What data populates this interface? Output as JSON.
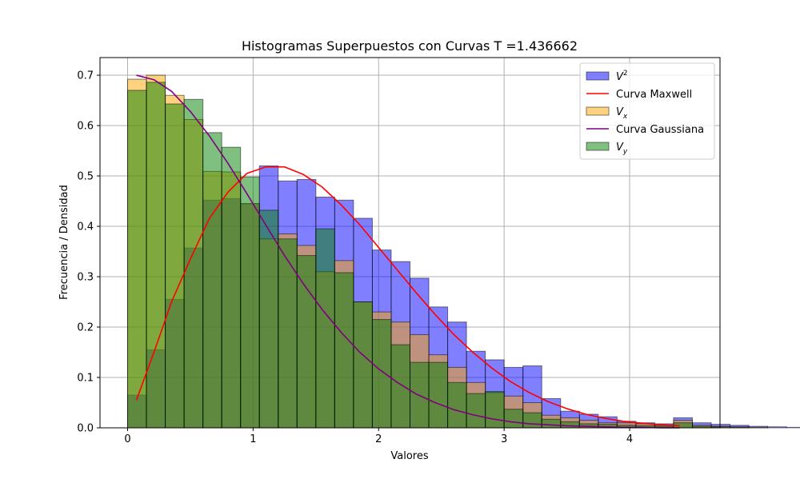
{
  "chart_data": {
    "type": "bar",
    "title": "Histogramas Superpuestos con Curvas T =1.436662",
    "xlabel": "Valores",
    "ylabel": "Frecuencia / Densidad",
    "xlim": [
      -0.22,
      4.72
    ],
    "ylim": [
      0,
      0.735
    ],
    "xticks": [
      0,
      1,
      2,
      3,
      4
    ],
    "yticks": [
      0.0,
      0.1,
      0.2,
      0.3,
      0.4,
      0.5,
      0.6,
      0.7
    ],
    "grid": true,
    "legend_position": "upper right",
    "bin_width": 0.15,
    "series": [
      {
        "name": "V^2",
        "kind": "histogram",
        "color": "#0000ff",
        "alpha": 0.5,
        "start": 0,
        "values": [
          0.065,
          0.155,
          0.255,
          0.357,
          0.452,
          0.455,
          0.445,
          0.52,
          0.49,
          0.493,
          0.458,
          0.452,
          0.416,
          0.353,
          0.33,
          0.297,
          0.24,
          0.21,
          0.152,
          0.135,
          0.12,
          0.123,
          0.058,
          0.033,
          0.027,
          0.022,
          0.013,
          0.01,
          0.008,
          0.02,
          0.01,
          0.007,
          0.005,
          0.003,
          0.002,
          0.001,
          0.0,
          0.0,
          0.0,
          0.0,
          0.0,
          0.0,
          0.0,
          0.0,
          0.0,
          0.002,
          0.0
        ]
      },
      {
        "name": "V_x",
        "kind": "histogram",
        "color": "#ffa500",
        "alpha": 0.5,
        "start": 0,
        "values": [
          0.692,
          0.7,
          0.66,
          0.612,
          0.509,
          0.508,
          0.445,
          0.375,
          0.385,
          0.362,
          0.31,
          0.332,
          0.25,
          0.23,
          0.21,
          0.185,
          0.145,
          0.12,
          0.09,
          0.07,
          0.063,
          0.05,
          0.025,
          0.02,
          0.015,
          0.01,
          0.01,
          0.008,
          0.005,
          0.015,
          0.005,
          0.003,
          0.002,
          0.001,
          0.0,
          0.0,
          0.0,
          0.0,
          0.0,
          0.0,
          0.0,
          0.0,
          0.0,
          0.0,
          0.0,
          0.0,
          0.0
        ]
      },
      {
        "name": "V_y",
        "kind": "histogram",
        "color": "#008000",
        "alpha": 0.5,
        "start": 0,
        "values": [
          0.67,
          0.686,
          0.643,
          0.652,
          0.586,
          0.557,
          0.498,
          0.432,
          0.375,
          0.342,
          0.395,
          0.308,
          0.25,
          0.215,
          0.165,
          0.13,
          0.13,
          0.09,
          0.068,
          0.072,
          0.037,
          0.03,
          0.017,
          0.012,
          0.008,
          0.007,
          0.005,
          0.004,
          0.003,
          0.01,
          0.003,
          0.002,
          0.001,
          0.0,
          0.0,
          0.0,
          0.0,
          0.0,
          0.0,
          0.0,
          0.0,
          0.0,
          0.0,
          0.0,
          0.0,
          0.0,
          0.0
        ]
      },
      {
        "name": "Curva Maxwell",
        "kind": "line",
        "color": "#ff0000",
        "x": [
          0.07,
          0.21,
          0.35,
          0.5,
          0.65,
          0.8,
          0.95,
          1.1,
          1.25,
          1.4,
          1.55,
          1.7,
          1.85,
          2.0,
          2.15,
          2.3,
          2.45,
          2.6,
          2.75,
          2.9,
          3.05,
          3.2,
          3.35,
          3.5,
          3.65,
          3.8,
          3.95,
          4.1,
          4.25,
          4.4
        ],
        "y": [
          0.055,
          0.15,
          0.25,
          0.335,
          0.415,
          0.468,
          0.505,
          0.518,
          0.518,
          0.503,
          0.478,
          0.443,
          0.403,
          0.358,
          0.313,
          0.268,
          0.225,
          0.185,
          0.15,
          0.119,
          0.092,
          0.07,
          0.052,
          0.038,
          0.027,
          0.019,
          0.013,
          0.009,
          0.006,
          0.004
        ]
      },
      {
        "name": "Curva Gaussiana",
        "kind": "line",
        "color": "#800080",
        "x": [
          0.07,
          0.21,
          0.35,
          0.5,
          0.65,
          0.8,
          0.95,
          1.1,
          1.25,
          1.4,
          1.55,
          1.7,
          1.85,
          2.0,
          2.15,
          2.3,
          2.45,
          2.6,
          2.75,
          2.9,
          3.05,
          3.2,
          3.35,
          3.5,
          3.65,
          3.8,
          3.95,
          4.1,
          4.25,
          4.4
        ],
        "y": [
          0.7,
          0.691,
          0.668,
          0.628,
          0.58,
          0.525,
          0.465,
          0.403,
          0.342,
          0.286,
          0.235,
          0.19,
          0.15,
          0.117,
          0.09,
          0.067,
          0.05,
          0.036,
          0.026,
          0.018,
          0.012,
          0.008,
          0.006,
          0.004,
          0.003,
          0.002,
          0.001,
          0.001,
          0.0,
          0.0
        ]
      }
    ],
    "legend": [
      {
        "label": "V",
        "sup": "2",
        "kind": "patch",
        "color": "#0000ff"
      },
      {
        "label": "Curva Maxwell",
        "kind": "line",
        "color": "#ff0000"
      },
      {
        "label": "V",
        "sub": "x",
        "kind": "patch",
        "color": "#ffa500"
      },
      {
        "label": "Curva Gaussiana",
        "kind": "line",
        "color": "#800080"
      },
      {
        "label": "V",
        "sub": "y",
        "kind": "patch",
        "color": "#008000"
      }
    ]
  }
}
